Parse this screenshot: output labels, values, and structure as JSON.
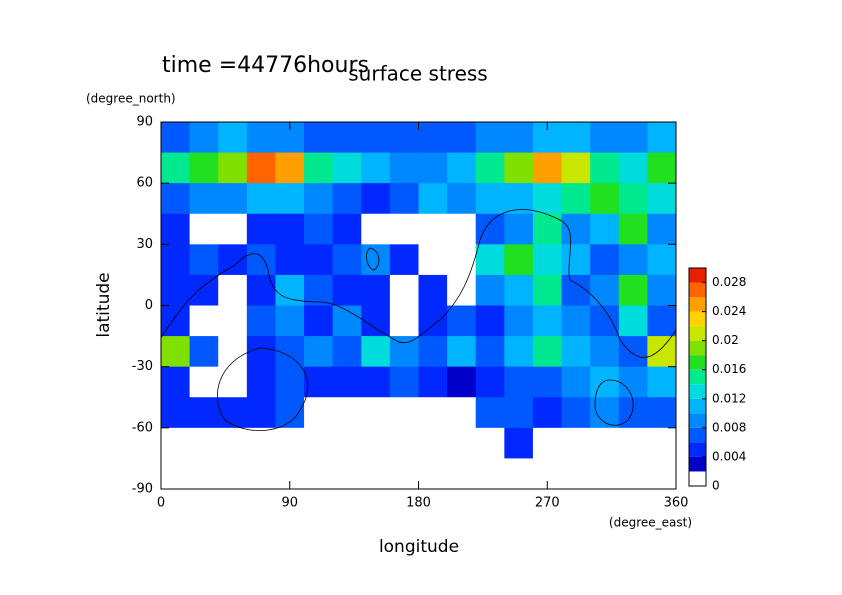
{
  "chart_data": {
    "type": "contour",
    "title": "surface stress",
    "subtitle": "time =44776hours",
    "x_label": "longitude",
    "x_units": "(degree_east)",
    "y_label": "latitude",
    "y_units": "(degree_north)",
    "xlim": [
      0,
      360
    ],
    "xticks": [
      0,
      90,
      180,
      270,
      360
    ],
    "ylim": [
      -90,
      90
    ],
    "yticks": [
      -90,
      -60,
      -30,
      0,
      30,
      60,
      90
    ],
    "x": [
      10,
      30,
      50,
      70,
      90,
      110,
      130,
      150,
      170,
      190,
      210,
      230,
      250,
      270,
      290,
      310,
      330,
      350
    ],
    "y": [
      82.5,
      67.5,
      52.5,
      37.5,
      22.5,
      7.5,
      -7.5,
      -22.5,
      -37.5,
      -52.5,
      -67.5,
      -82.5
    ],
    "z": [
      [
        0.006,
        0.008,
        0.01,
        0.008,
        0.008,
        0.006,
        0.006,
        0.006,
        0.006,
        0.006,
        0.006,
        0.008,
        0.008,
        0.01,
        0.01,
        0.008,
        0.008,
        0.01
      ],
      [
        0.014,
        0.016,
        0.018,
        0.026,
        0.024,
        0.014,
        0.012,
        0.01,
        0.008,
        0.008,
        0.01,
        0.014,
        0.018,
        0.024,
        0.02,
        0.014,
        0.012,
        0.016
      ],
      [
        0.006,
        0.008,
        0.008,
        0.01,
        0.01,
        0.008,
        0.006,
        0.004,
        0.006,
        0.01,
        0.008,
        0.01,
        0.01,
        0.012,
        0.014,
        0.016,
        0.014,
        0.012
      ],
      [
        0.004,
        0.001,
        0.001,
        0.004,
        0.004,
        0.006,
        0.004,
        0.001,
        0.001,
        0.001,
        0.001,
        0.006,
        0.008,
        0.014,
        0.008,
        0.01,
        0.016,
        0.008
      ],
      [
        0.004,
        0.006,
        0.004,
        0.006,
        0.004,
        0.004,
        0.006,
        0.008,
        0.004,
        0.001,
        0.001,
        0.012,
        0.016,
        0.012,
        0.01,
        0.006,
        0.008,
        0.01
      ],
      [
        0.004,
        0.004,
        0.001,
        0.004,
        0.01,
        0.006,
        0.004,
        0.004,
        0.001,
        0.004,
        0.001,
        0.008,
        0.01,
        0.014,
        0.006,
        0.008,
        0.016,
        0.008
      ],
      [
        0.004,
        0.001,
        0.001,
        0.006,
        0.008,
        0.004,
        0.008,
        0.004,
        0.001,
        0.004,
        0.006,
        0.004,
        0.008,
        0.01,
        0.008,
        0.006,
        0.012,
        0.006
      ],
      [
        0.018,
        0.006,
        0.001,
        0.004,
        0.006,
        0.008,
        0.006,
        0.012,
        0.008,
        0.006,
        0.01,
        0.006,
        0.01,
        0.014,
        0.01,
        0.008,
        0.006,
        0.02
      ],
      [
        0.004,
        0.001,
        0.001,
        0.004,
        0.006,
        0.004,
        0.004,
        0.004,
        0.006,
        0.004,
        0.002,
        0.004,
        0.006,
        0.006,
        0.008,
        0.01,
        0.008,
        0.01
      ],
      [
        0.004,
        0.004,
        0.004,
        0.004,
        0.006,
        0.001,
        0.001,
        0.001,
        0.001,
        0.001,
        0.001,
        0.006,
        0.006,
        0.004,
        0.006,
        0.008,
        0.006,
        0.006
      ],
      [
        0.001,
        0.001,
        0.001,
        0.001,
        0.001,
        0.001,
        0.001,
        0.001,
        0.001,
        0.001,
        0.001,
        0.001,
        0.004,
        0.001,
        0.001,
        0.001,
        0.001,
        0.001
      ],
      [
        0.001,
        0.001,
        0.001,
        0.001,
        0.001,
        0.001,
        0.001,
        0.001,
        0.001,
        0.001,
        0.001,
        0.001,
        0.001,
        0.001,
        0.001,
        0.001,
        0.001,
        0.001
      ]
    ],
    "levels": [
      0,
      0.002,
      0.004,
      0.006,
      0.008,
      0.01,
      0.012,
      0.014,
      0.016,
      0.018,
      0.02,
      0.022,
      0.024,
      0.026,
      0.028,
      0.03
    ],
    "colors": [
      "#ffffff",
      "#0000c8",
      "#0028ff",
      "#0058ff",
      "#0088ff",
      "#00b4ff",
      "#00dcdc",
      "#00e890",
      "#20e020",
      "#80e000",
      "#c8e600",
      "#ffd200",
      "#ffa000",
      "#ff6400",
      "#e82000"
    ],
    "colorbar_ticks": [
      0,
      0.004,
      0.008,
      0.012,
      0.016,
      0.02,
      0.024,
      0.028
    ]
  }
}
